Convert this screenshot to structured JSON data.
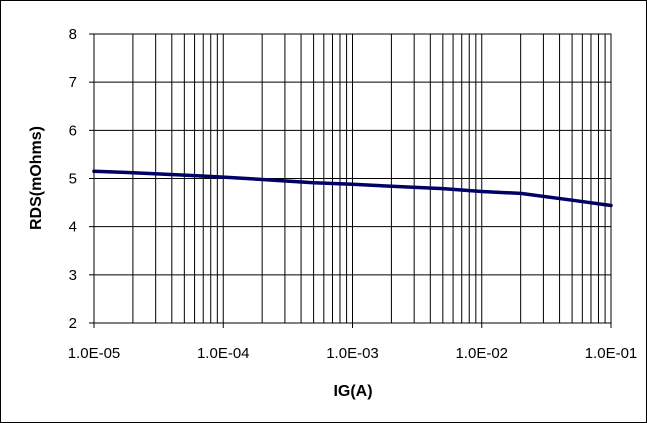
{
  "chart_data": {
    "type": "line",
    "title": "",
    "xlabel": "IG(A)",
    "ylabel": "RDS(mOhms)",
    "x_scale": "log",
    "xlim": [
      1e-05,
      0.1
    ],
    "ylim": [
      2,
      8
    ],
    "x_tick_values": [
      1e-05,
      0.0001,
      0.001,
      0.01,
      0.1
    ],
    "x_tick_labels": [
      "1.0E-05",
      "1.0E-04",
      "1.0E-03",
      "1.0E-02",
      "1.0E-01"
    ],
    "y_tick_values": [
      2,
      3,
      4,
      5,
      6,
      7,
      8
    ],
    "y_tick_labels": [
      "2",
      "3",
      "4",
      "5",
      "6",
      "7",
      "8"
    ],
    "grid": true,
    "legend": "none",
    "series": [
      {
        "color": "#000066",
        "x": [
          1e-05,
          2e-05,
          5e-05,
          0.0001,
          0.0002,
          0.0005,
          0.001,
          0.002,
          0.005,
          0.01,
          0.02,
          0.05,
          0.1
        ],
        "y": [
          5.15,
          5.12,
          5.07,
          5.03,
          4.98,
          4.91,
          4.88,
          4.84,
          4.79,
          4.73,
          4.69,
          4.55,
          4.44
        ]
      }
    ]
  }
}
